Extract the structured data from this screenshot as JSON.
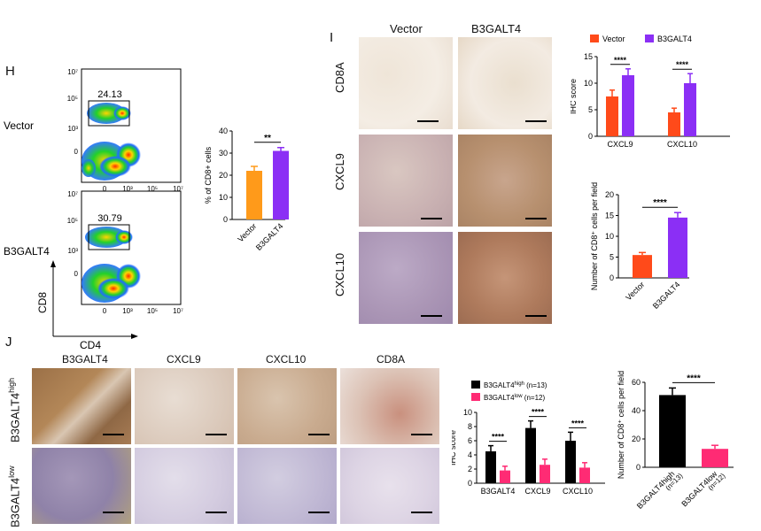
{
  "panel_H": {
    "letter": "H",
    "flow_plots": [
      {
        "sample": "Vector",
        "gate_percent": "24.13"
      },
      {
        "sample": "B3GALT4",
        "gate_percent": "30.79"
      }
    ],
    "y_ticks": [
      "10⁷",
      "10⁵",
      "10³",
      "0"
    ],
    "x_ticks": [
      "0",
      "10³",
      "10⁵",
      "10⁷"
    ],
    "x_axis": "CD4",
    "y_axis": "CD8"
  },
  "panel_I": {
    "letter": "I",
    "columns": [
      "Vector",
      "B3GALT4"
    ],
    "rows": [
      "CD8A",
      "CXCL9",
      "CXCL10"
    ]
  },
  "panel_J": {
    "letter": "J",
    "columns": [
      "B3GALT4",
      "CXCL9",
      "CXCL10",
      "CD8A"
    ],
    "row_labels": [
      {
        "base": "B3GALT4",
        "sup": "high"
      },
      {
        "base": "B3GALT4",
        "sup": "low"
      }
    ]
  },
  "colors": {
    "vector_orange": "#ff8c1a",
    "b3galt4_purple": "#8b2ff5",
    "red_orange": "#ff4a1a",
    "high_black": "#000000",
    "low_pink": "#ff2b74"
  },
  "chart_data": [
    {
      "id": "H-bar",
      "type": "bar",
      "categories": [
        "Vector",
        "B3GALT4"
      ],
      "values": [
        22,
        31
      ],
      "errors": [
        2,
        1.5
      ],
      "colors": [
        "#ff9a1a",
        "#8b2ff5"
      ],
      "ylabel": "% of CD8+ cells",
      "ylim": [
        0,
        40
      ],
      "yticks": [
        "0",
        "10",
        "20",
        "30",
        "40"
      ],
      "significance": "**"
    },
    {
      "id": "I-ihc",
      "type": "bar",
      "categories": [
        "CXCL9",
        "CXCL10"
      ],
      "series": [
        {
          "name": "Vector",
          "values": [
            7.5,
            4.5
          ],
          "errors": [
            1.2,
            0.8
          ]
        },
        {
          "name": "B3GALT4",
          "values": [
            11.5,
            10
          ],
          "errors": [
            1.2,
            1.8
          ]
        }
      ],
      "colors": [
        "#ff4a1a",
        "#8b2ff5"
      ],
      "ylabel": "IHC score",
      "ylim": [
        0,
        15
      ],
      "yticks": [
        "0",
        "5",
        "10",
        "15"
      ],
      "significance": [
        "****",
        "****"
      ],
      "legend": "top"
    },
    {
      "id": "I-cd8",
      "type": "bar",
      "categories": [
        "Vector",
        "B3GALT4"
      ],
      "values": [
        5.5,
        14.5
      ],
      "errors": [
        0.6,
        1.2
      ],
      "colors": [
        "#ff4a1a",
        "#8b2ff5"
      ],
      "ylabel": "Number of CD8⁺ cells per field",
      "ylim": [
        0,
        20
      ],
      "yticks": [
        "0",
        "5",
        "10",
        "15",
        "20"
      ],
      "significance": "****"
    },
    {
      "id": "J-ihc",
      "type": "bar",
      "categories": [
        "B3GALT4",
        "CXCL9",
        "CXCL10"
      ],
      "series": [
        {
          "name": "B3GALT4high (n=13)",
          "values": [
            4.5,
            7.8,
            6
          ],
          "errors": [
            0.8,
            1,
            1.2
          ]
        },
        {
          "name": "B3GALT4low (n=12)",
          "values": [
            1.8,
            2.6,
            2.2
          ],
          "errors": [
            0.6,
            0.8,
            0.7
          ]
        }
      ],
      "legend_entries": [
        {
          "base": "B3GALT4",
          "sup": "high",
          "n": "(n=13)"
        },
        {
          "base": "B3GALT4",
          "sup": "low",
          "n": "(n=12)"
        }
      ],
      "colors": [
        "#000000",
        "#ff2b74"
      ],
      "ylabel": "IHC score",
      "ylim": [
        0,
        10
      ],
      "yticks": [
        "0",
        "2",
        "4",
        "6",
        "8",
        "10"
      ],
      "significance": [
        "****",
        "****",
        "****"
      ],
      "legend": "top-left"
    },
    {
      "id": "J-cd8",
      "type": "bar",
      "categories": [
        "B3GALT4high (n=13)",
        "B3GALT4low (n=12)"
      ],
      "category_labels": [
        {
          "base": "B3GALT4",
          "sup": "high",
          "n": "(n=13)"
        },
        {
          "base": "B3GALT4",
          "sup": "low",
          "n": "(n=12)"
        }
      ],
      "values": [
        51,
        13
      ],
      "errors": [
        5,
        2.5
      ],
      "colors": [
        "#000000",
        "#ff2b74"
      ],
      "ylabel": "Number of CD8⁺ cells per field",
      "ylim": [
        0,
        60
      ],
      "yticks": [
        "0",
        "20",
        "40",
        "60"
      ],
      "significance": "****"
    }
  ]
}
